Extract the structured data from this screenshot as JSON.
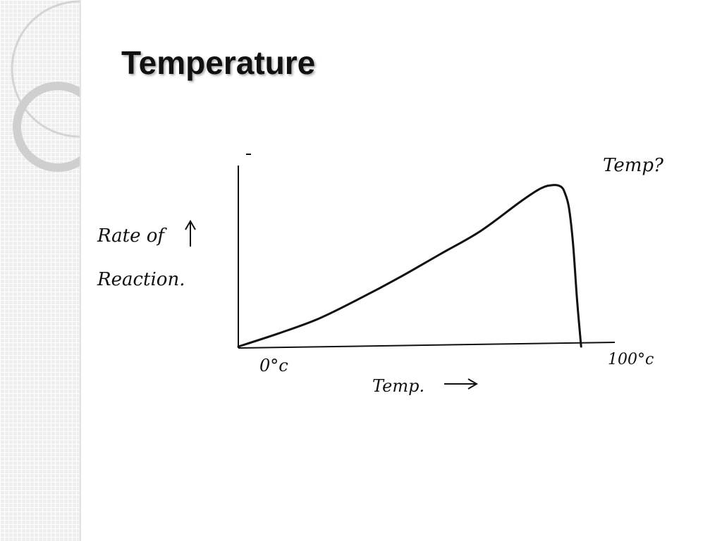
{
  "slide": {
    "title": "Temperature",
    "side_panel_color": "#eeeeee",
    "text_color": "#111111"
  },
  "chart_data": {
    "type": "line",
    "title": "",
    "xlabel": "Temp.",
    "ylabel_line1": "Rate of",
    "ylabel_line2": "Reaction.",
    "x_tick_start": "0°c",
    "x_tick_end": "100°c",
    "corner_note": "Temp?",
    "xlim": [
      0,
      100
    ],
    "ylim": [
      0,
      100
    ],
    "grid": false,
    "series": [
      {
        "x": [
          0,
          10,
          20,
          30,
          40,
          50,
          60,
          70,
          75,
          78,
          80,
          81,
          82,
          83,
          84,
          85
        ],
        "y": [
          0,
          8,
          17,
          29,
          42,
          56,
          70,
          88,
          96,
          98,
          97,
          93,
          84,
          62,
          28,
          0
        ]
      }
    ]
  }
}
